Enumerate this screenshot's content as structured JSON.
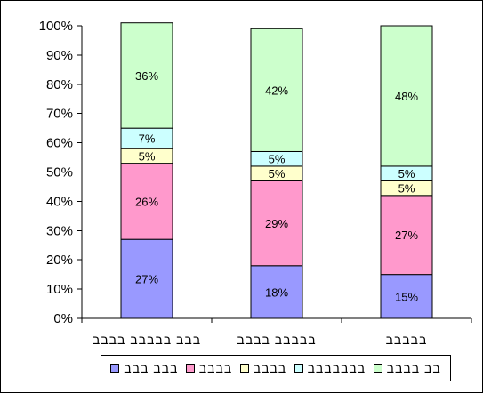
{
  "chart_data": {
    "type": "bar",
    "stacked": true,
    "percent_scale": true,
    "categories": [
      "בבב בבבבב בבבב",
      "בבבבב בבבב",
      "בבבבב"
    ],
    "series": [
      {
        "name": "בבב בבב",
        "color": "#9999ff",
        "values": [
          27,
          18,
          15
        ],
        "labels": [
          "27%",
          "18%",
          "15%"
        ]
      },
      {
        "name": "בבבב",
        "color": "#ff99cc",
        "values": [
          26,
          29,
          27
        ],
        "labels": [
          "26%",
          "29%",
          "27%"
        ]
      },
      {
        "name": "בבבב",
        "color": "#ffffcc",
        "values": [
          5,
          5,
          5
        ],
        "labels": [
          "5%",
          "5%",
          "5%"
        ]
      },
      {
        "name": "בבבבבבב",
        "color": "#ccffff",
        "values": [
          7,
          5,
          5
        ],
        "labels": [
          "7%",
          "5%",
          "5%"
        ]
      },
      {
        "name": "בב בבבב",
        "color": "#ccffcc",
        "values": [
          36,
          42,
          48
        ],
        "labels": [
          "36%",
          "42%",
          "48%"
        ]
      }
    ],
    "ylim": [
      0,
      100
    ],
    "yticks": [
      "0%",
      "10%",
      "20%",
      "30%",
      "40%",
      "50%",
      "60%",
      "70%",
      "80%",
      "90%",
      "100%"
    ],
    "legend_position": "bottom",
    "grid": false
  }
}
